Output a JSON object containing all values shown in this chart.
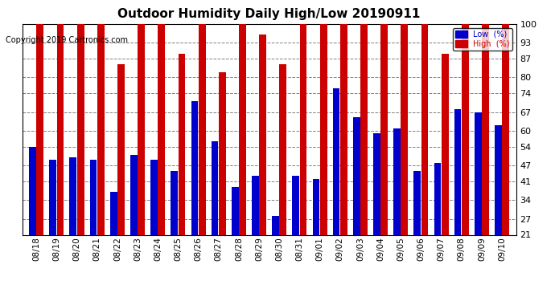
{
  "title": "Outdoor Humidity Daily High/Low 20190911",
  "copyright": "Copyright 2019 Cartronics.com",
  "legend_low": "Low  (%)",
  "legend_high": "High  (%)",
  "color_low": "#0000cc",
  "color_high": "#cc0000",
  "bg_color": "#ffffff",
  "ylim": [
    21,
    100
  ],
  "yticks": [
    21,
    27,
    34,
    41,
    47,
    54,
    60,
    67,
    74,
    80,
    87,
    93,
    100
  ],
  "categories": [
    "08/18",
    "08/19",
    "08/20",
    "08/21",
    "08/22",
    "08/23",
    "08/24",
    "08/25",
    "08/26",
    "08/27",
    "08/28",
    "08/29",
    "08/30",
    "08/31",
    "09/01",
    "09/02",
    "09/03",
    "09/04",
    "09/05",
    "09/06",
    "09/07",
    "09/08",
    "09/09",
    "09/10"
  ],
  "high": [
    100,
    100,
    100,
    100,
    85,
    100,
    100,
    89,
    100,
    82,
    100,
    96,
    85,
    100,
    100,
    100,
    100,
    100,
    100,
    100,
    89,
    100,
    100,
    100
  ],
  "low": [
    54,
    49,
    50,
    49,
    37,
    51,
    49,
    45,
    71,
    56,
    39,
    43,
    28,
    43,
    42,
    76,
    65,
    59,
    61,
    45,
    48,
    68,
    67,
    62
  ]
}
